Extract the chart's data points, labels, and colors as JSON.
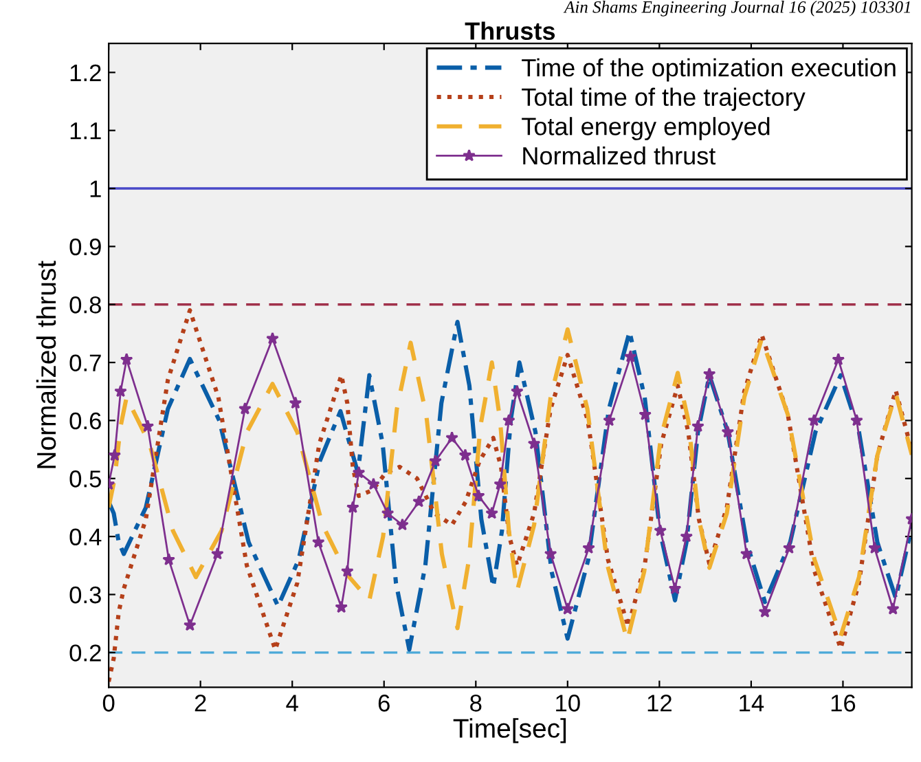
{
  "chart_data": {
    "type": "line",
    "title": "Thrusts",
    "xlabel": "Time[sec]",
    "ylabel": "Normalized thrust",
    "annotations": [
      "Ain Shams Engineering Journal 16 (2025) 103301"
    ],
    "xlim": [
      0,
      17.5
    ],
    "ylim": [
      0.14,
      1.25
    ],
    "xticks": [
      0,
      2,
      4,
      6,
      8,
      10,
      12,
      14,
      16
    ],
    "yticks": [
      0.2,
      0.3,
      0.4,
      0.5,
      0.6,
      0.7,
      0.8,
      0.9,
      1,
      1.1,
      1.2
    ],
    "legend": "top right",
    "grid": false,
    "ref_lines": [
      {
        "axis": "y",
        "value": 1,
        "color": "#4848c8",
        "line_style": "solid"
      },
      {
        "axis": "y",
        "value": 0.8,
        "color": "#a0304a",
        "line_style": "dashed"
      },
      {
        "axis": "y",
        "value": 0.2,
        "color": "#4aa8d8",
        "line_style": "dashed"
      }
    ],
    "series": [
      {
        "name": "Time of the optimization execution",
        "color": "#0a5ea8",
        "line_style": "dashdot",
        "marker": "none",
        "x": [
          0,
          0.11,
          0.22,
          0.33,
          0.81,
          1.29,
          1.77,
          2.41,
          3.05,
          3.69,
          4.14,
          4.6,
          5.05,
          5.43,
          5.68,
          5.97,
          6.26,
          6.55,
          6.9,
          7.25,
          7.6,
          7.86,
          8.12,
          8.38,
          8.57,
          8.76,
          8.95,
          9.3,
          9.65,
          10.0,
          10.45,
          10.9,
          11.35,
          11.68,
          12.01,
          12.34,
          12.59,
          12.84,
          13.09,
          13.49,
          13.9,
          14.3,
          14.85,
          15.4,
          15.95,
          16.35,
          16.75,
          17.15,
          17.5
        ],
        "values": [
          0.46,
          0.44,
          0.39,
          0.37,
          0.45,
          0.62,
          0.706,
          0.6,
          0.39,
          0.28,
          0.36,
          0.53,
          0.616,
          0.51,
          0.678,
          0.56,
          0.32,
          0.205,
          0.35,
          0.63,
          0.77,
          0.66,
          0.43,
          0.313,
          0.41,
          0.6,
          0.7,
          0.58,
          0.34,
          0.224,
          0.36,
          0.62,
          0.753,
          0.64,
          0.41,
          0.29,
          0.39,
          0.58,
          0.678,
          0.58,
          0.39,
          0.287,
          0.39,
          0.58,
          0.678,
          0.58,
          0.39,
          0.294,
          0.417
        ]
      },
      {
        "name": "Total time of the trajectory",
        "color": "#b5401a",
        "line_style": "dotted",
        "marker": "none",
        "x": [
          0,
          0.11,
          0.22,
          0.33,
          0.81,
          1.29,
          1.77,
          2.39,
          3.01,
          3.63,
          4.11,
          4.59,
          5.07,
          5.2,
          5.32,
          5.45,
          5.75,
          6.04,
          6.34,
          6.72,
          7.1,
          7.48,
          7.78,
          8.08,
          8.38,
          8.55,
          8.73,
          8.9,
          9.27,
          9.63,
          10.0,
          10.44,
          10.88,
          11.32,
          11.68,
          12.04,
          12.4,
          12.63,
          12.86,
          13.09,
          13.47,
          13.85,
          14.23,
          14.8,
          15.38,
          15.95,
          16.35,
          16.75,
          17.15,
          17.5
        ],
        "values": [
          0.15,
          0.19,
          0.27,
          0.31,
          0.43,
          0.67,
          0.79,
          0.64,
          0.35,
          0.205,
          0.32,
          0.56,
          0.678,
          0.63,
          0.52,
          0.47,
          0.48,
          0.51,
          0.52,
          0.5,
          0.44,
          0.42,
          0.46,
          0.53,
          0.57,
          0.52,
          0.4,
          0.35,
          0.44,
          0.62,
          0.713,
          0.6,
          0.36,
          0.245,
          0.35,
          0.56,
          0.66,
          0.58,
          0.43,
          0.353,
          0.45,
          0.65,
          0.748,
          0.61,
          0.34,
          0.207,
          0.32,
          0.54,
          0.652,
          0.548
        ]
      },
      {
        "name": "Total energy employed",
        "color": "#f0b030",
        "line_style": "dashed",
        "marker": "none",
        "x": [
          0,
          0.13,
          0.26,
          0.39,
          0.89,
          1.4,
          1.9,
          2.46,
          3.01,
          3.57,
          4.11,
          4.66,
          5.2,
          5.68,
          5.98,
          6.28,
          6.58,
          6.92,
          7.26,
          7.6,
          7.85,
          8.1,
          8.35,
          8.53,
          8.72,
          8.9,
          9.27,
          9.63,
          10.0,
          10.43,
          10.87,
          11.3,
          11.67,
          12.03,
          12.4,
          12.63,
          12.86,
          13.09,
          13.47,
          13.85,
          14.23,
          14.8,
          15.38,
          15.95,
          16.35,
          16.75,
          17.15,
          17.5
        ],
        "values": [
          0.45,
          0.5,
          0.59,
          0.64,
          0.56,
          0.41,
          0.33,
          0.41,
          0.58,
          0.663,
          0.58,
          0.42,
          0.334,
          0.29,
          0.4,
          0.62,
          0.734,
          0.61,
          0.37,
          0.242,
          0.36,
          0.59,
          0.7,
          0.6,
          0.41,
          0.306,
          0.42,
          0.64,
          0.757,
          0.62,
          0.35,
          0.22,
          0.34,
          0.57,
          0.682,
          0.6,
          0.43,
          0.346,
          0.44,
          0.64,
          0.741,
          0.61,
          0.36,
          0.228,
          0.33,
          0.54,
          0.647,
          0.541
        ]
      },
      {
        "name": "Normalized thrust",
        "color": "#7e2f8e",
        "line_style": "solid",
        "marker": "star",
        "x": [
          0,
          0.13,
          0.26,
          0.39,
          0.85,
          1.31,
          1.77,
          2.37,
          2.97,
          3.57,
          4.07,
          4.57,
          5.07,
          5.2,
          5.32,
          5.45,
          5.77,
          6.08,
          6.4,
          6.76,
          7.12,
          7.48,
          7.77,
          8.06,
          8.35,
          8.53,
          8.72,
          8.9,
          9.27,
          9.63,
          10.0,
          10.46,
          10.91,
          11.37,
          11.69,
          12.02,
          12.34,
          12.59,
          12.84,
          13.09,
          13.49,
          13.9,
          14.3,
          14.83,
          15.37,
          15.9,
          16.3,
          16.69,
          17.09,
          17.5
        ],
        "values": [
          0.49,
          0.54,
          0.65,
          0.705,
          0.59,
          0.36,
          0.247,
          0.37,
          0.62,
          0.741,
          0.63,
          0.39,
          0.278,
          0.34,
          0.45,
          0.51,
          0.49,
          0.44,
          0.42,
          0.46,
          0.53,
          0.57,
          0.54,
          0.47,
          0.44,
          0.49,
          0.6,
          0.65,
          0.56,
          0.37,
          0.275,
          0.38,
          0.6,
          0.71,
          0.61,
          0.41,
          0.31,
          0.4,
          0.59,
          0.68,
          0.58,
          0.37,
          0.27,
          0.38,
          0.6,
          0.705,
          0.6,
          0.38,
          0.275,
          0.43
        ]
      }
    ]
  }
}
